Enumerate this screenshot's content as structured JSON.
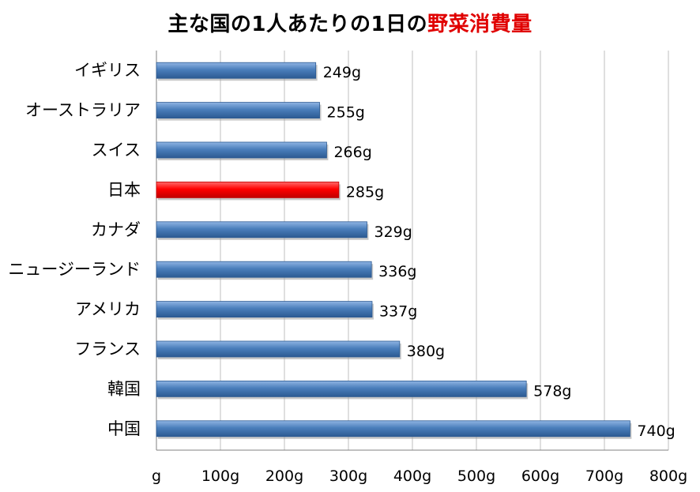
{
  "chart_data": {
    "type": "bar",
    "orientation": "horizontal",
    "title_prefix": "主な国の1人あたりの1日の",
    "title_highlight": "野菜消費量",
    "categories": [
      "イギリス",
      "オーストラリア",
      "スイス",
      "日本",
      "カナダ",
      "ニュージーランド",
      "アメリカ",
      "フランス",
      "韓国",
      "中国"
    ],
    "values": [
      249,
      255,
      266,
      285,
      329,
      336,
      337,
      380,
      578,
      740
    ],
    "value_labels": [
      "249g",
      "255g",
      "266g",
      "285g",
      "329g",
      "336g",
      "337g",
      "380g",
      "578g",
      "740g"
    ],
    "highlight_category": "日本",
    "xlim": [
      0,
      800
    ],
    "x_ticks": [
      0,
      100,
      200,
      300,
      400,
      500,
      600,
      700,
      800
    ],
    "x_tick_labels": [
      "g",
      "100g",
      "200g",
      "300g",
      "400g",
      "500g",
      "600g",
      "700g",
      "800g"
    ],
    "grid": true,
    "legend": "none",
    "colors": {
      "bar": "#4a7ebb",
      "bar_light": "#8fb4e3",
      "bar_dark": "#2c5a92",
      "highlight": "#ff0000",
      "highlight_light": "#ff6a6a",
      "highlight_dark": "#c00000",
      "title_highlight": "#e00000",
      "grid": "#bfbfbf",
      "axis": "#808080"
    }
  }
}
